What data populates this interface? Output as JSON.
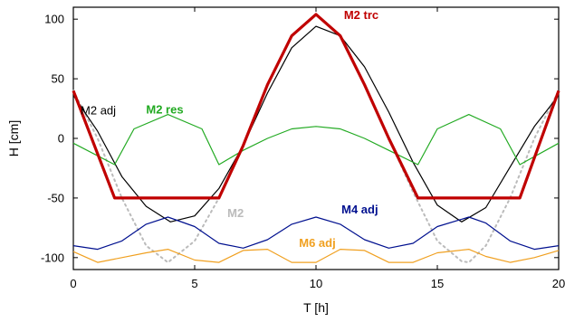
{
  "chart_data": {
    "type": "line",
    "xlabel": "T [h]",
    "ylabel": "H [cm]",
    "xlim": [
      0,
      20
    ],
    "ylim": [
      -110,
      110
    ],
    "xticks": [
      0,
      5,
      10,
      15,
      20
    ],
    "yticks": [
      -100,
      -50,
      0,
      50,
      100
    ],
    "grid": false,
    "series": [
      {
        "name": "M2 adj",
        "color": "#000000",
        "dash": "solid",
        "style": "thin",
        "x": [
          0,
          1,
          2,
          3,
          4,
          5,
          6,
          7,
          8,
          9,
          10,
          11,
          12,
          13,
          14,
          15,
          16,
          17,
          18,
          19,
          20
        ],
        "y": [
          36,
          6,
          -32,
          -57,
          -70,
          -65,
          -42,
          -6,
          38,
          76,
          94,
          86,
          60,
          22,
          -20,
          -56,
          -70,
          -58,
          -24,
          10,
          36
        ]
      },
      {
        "name": "M2",
        "color": "#bbbbbb",
        "dash": "dotted",
        "style": "thin",
        "x": [
          0,
          1,
          2,
          3,
          3.9,
          5,
          6,
          7,
          8,
          9,
          10,
          11,
          12,
          13,
          14,
          15,
          16,
          16.3,
          17,
          18,
          19,
          20
        ],
        "y": [
          40,
          0,
          -50,
          -90,
          -104,
          -86,
          -50,
          -6,
          45,
          86,
          104,
          86,
          45,
          0,
          -45,
          -86,
          -103,
          -104,
          -90,
          -50,
          0,
          40
        ]
      },
      {
        "name": "M2 trc",
        "color": "#c00000",
        "dash": "solid",
        "style": "thick",
        "x": [
          0,
          1.7,
          6.0,
          7,
          8,
          9,
          10,
          11,
          12,
          13,
          14.2,
          18.4,
          20
        ],
        "y": [
          40,
          -50,
          -50,
          -6,
          45,
          86,
          104,
          86,
          45,
          0,
          -50,
          -50,
          40
        ]
      },
      {
        "name": "M2 res",
        "color": "#22aa22",
        "dash": "solid",
        "style": "thin",
        "x": [
          0,
          1.7,
          2.5,
          3.9,
          5.3,
          6.0,
          7,
          8,
          9,
          10,
          11,
          12,
          13,
          14.2,
          15,
          16.3,
          17.6,
          18.4,
          20
        ],
        "y": [
          -4,
          -22,
          8,
          20,
          8,
          -22,
          -10,
          0,
          8,
          10,
          8,
          0,
          -10,
          -22,
          8,
          20,
          8,
          -22,
          -4
        ]
      },
      {
        "name": "M4 adj",
        "color": "#00108f",
        "dash": "solid",
        "style": "thin",
        "x": [
          0,
          1,
          2,
          3,
          3.9,
          5,
          6,
          7,
          8,
          9,
          10,
          11,
          12,
          13,
          14,
          15,
          16.3,
          17,
          18,
          19,
          20
        ],
        "y": [
          -90,
          -93,
          -86,
          -72,
          -66,
          -74,
          -88,
          -92,
          -85,
          -72,
          -66,
          -72,
          -85,
          -92,
          -88,
          -74,
          -66,
          -71,
          -86,
          -93,
          -90
        ]
      },
      {
        "name": "M6 adj",
        "color": "#f0a020",
        "dash": "solid",
        "style": "thin",
        "x": [
          0,
          1,
          2,
          3,
          3.9,
          5,
          6,
          7,
          8,
          9,
          10,
          11,
          12,
          13,
          14,
          15,
          16.3,
          17,
          18,
          19,
          20
        ],
        "y": [
          -95,
          -104,
          -100,
          -96,
          -93,
          -102,
          -104,
          -94,
          -93,
          -104,
          -104,
          -93,
          -94,
          -104,
          -104,
          -96,
          -93,
          -99,
          -104,
          -100,
          -94
        ]
      }
    ],
    "labels": [
      {
        "text": "M2 trc",
        "series": 2,
        "at": [
          11.15,
          100
        ],
        "bold": true
      },
      {
        "text": "M2 adj",
        "series": 0,
        "at": [
          0.3,
          20
        ],
        "bold": false
      },
      {
        "text": "M2 res",
        "series": 3,
        "at": [
          3.0,
          21
        ],
        "bold": true
      },
      {
        "text": "M2",
        "series": 1,
        "at": [
          6.35,
          -66
        ],
        "bold": true
      },
      {
        "text": "M4 adj",
        "series": 4,
        "at": [
          11.05,
          -63
        ],
        "bold": true
      },
      {
        "text": "M6 adj",
        "series": 5,
        "at": [
          9.3,
          -91
        ],
        "bold": true
      }
    ]
  }
}
